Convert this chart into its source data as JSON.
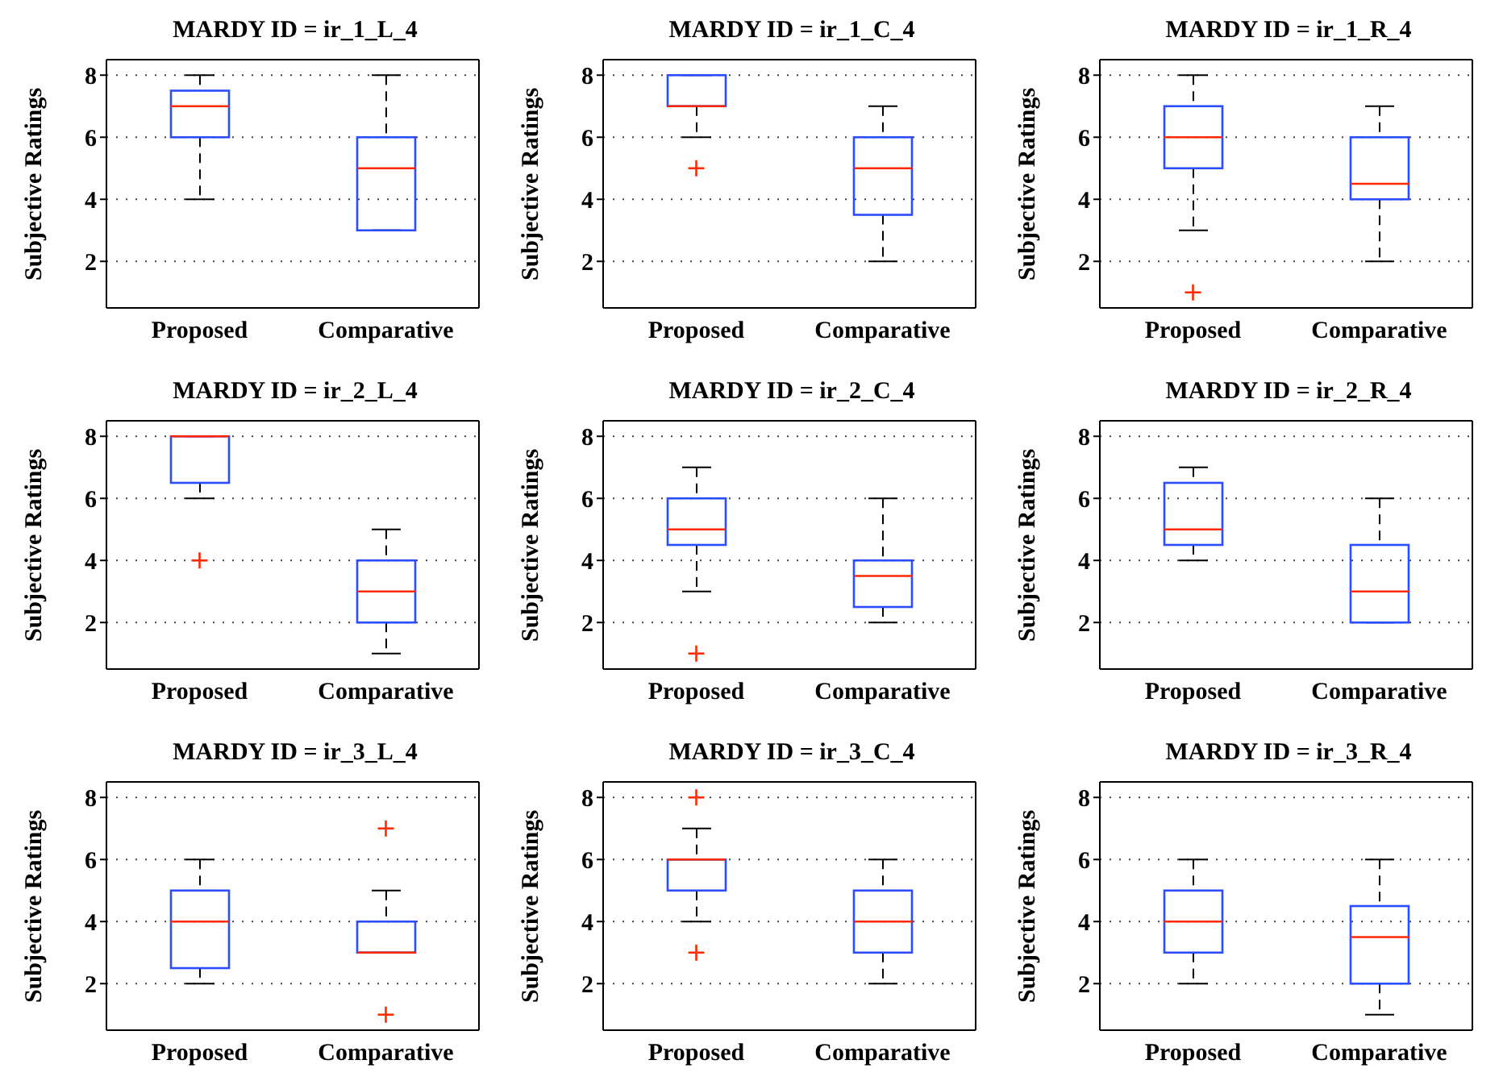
{
  "chart_data": [
    {
      "type": "box",
      "title": "MARDY ID = ir_1_L_4",
      "ylabel": "Subjective Ratings",
      "categories": [
        "Proposed",
        "Comparative"
      ],
      "ylim": [
        0.5,
        8.5
      ],
      "yticks": [
        2,
        4,
        6,
        8
      ],
      "grid": "y",
      "boxes": [
        {
          "low": 4,
          "q1": 6,
          "median": 7,
          "q3": 7.5,
          "high": 8
        },
        {
          "low": 3,
          "q1": 3,
          "median": 5,
          "q3": 6,
          "high": 8
        }
      ]
    },
    {
      "type": "box",
      "title": "MARDY ID = ir_1_C_4",
      "ylabel": "Subjective Ratings",
      "categories": [
        "Proposed",
        "Comparative"
      ],
      "ylim": [
        0.5,
        8.5
      ],
      "yticks": [
        2,
        4,
        6,
        8
      ],
      "grid": "y",
      "boxes": [
        {
          "low": 6,
          "q1": 7,
          "median": 7,
          "q3": 8,
          "high": 8,
          "outliers": [
            5
          ]
        },
        {
          "low": 2,
          "q1": 3.5,
          "median": 5,
          "q3": 6,
          "high": 7
        }
      ]
    },
    {
      "type": "box",
      "title": "MARDY ID = ir_1_R_4",
      "ylabel": "Subjective Ratings",
      "categories": [
        "Proposed",
        "Comparative"
      ],
      "ylim": [
        0.5,
        8.5
      ],
      "yticks": [
        2,
        4,
        6,
        8
      ],
      "grid": "y",
      "boxes": [
        {
          "low": 3,
          "q1": 5,
          "median": 6,
          "q3": 7,
          "high": 8,
          "outliers": [
            1
          ]
        },
        {
          "low": 2,
          "q1": 4,
          "median": 4.5,
          "q3": 6,
          "high": 7
        }
      ]
    },
    {
      "type": "box",
      "title": "MARDY ID = ir_2_L_4",
      "ylabel": "Subjective Ratings",
      "categories": [
        "Proposed",
        "Comparative"
      ],
      "ylim": [
        0.5,
        8.5
      ],
      "yticks": [
        2,
        4,
        6,
        8
      ],
      "grid": "y",
      "boxes": [
        {
          "low": 6,
          "q1": 6.5,
          "median": 8,
          "q3": 8,
          "high": 8,
          "outliers": [
            4
          ]
        },
        {
          "low": 1,
          "q1": 2,
          "median": 3,
          "q3": 4,
          "high": 5
        }
      ]
    },
    {
      "type": "box",
      "title": "MARDY ID = ir_2_C_4",
      "ylabel": "Subjective Ratings",
      "categories": [
        "Proposed",
        "Comparative"
      ],
      "ylim": [
        0.5,
        8.5
      ],
      "yticks": [
        2,
        4,
        6,
        8
      ],
      "grid": "y",
      "boxes": [
        {
          "low": 3,
          "q1": 4.5,
          "median": 5,
          "q3": 6,
          "high": 7,
          "outliers": [
            1
          ]
        },
        {
          "low": 2,
          "q1": 2.5,
          "median": 3.5,
          "q3": 4,
          "high": 6
        }
      ]
    },
    {
      "type": "box",
      "title": "MARDY ID = ir_2_R_4",
      "ylabel": "Subjective Ratings",
      "categories": [
        "Proposed",
        "Comparative"
      ],
      "ylim": [
        0.5,
        8.5
      ],
      "yticks": [
        2,
        4,
        6,
        8
      ],
      "grid": "y",
      "boxes": [
        {
          "low": 4,
          "q1": 4.5,
          "median": 5,
          "q3": 6.5,
          "high": 7
        },
        {
          "low": 2,
          "q1": 2,
          "median": 3,
          "q3": 4.5,
          "high": 6
        }
      ]
    },
    {
      "type": "box",
      "title": "MARDY ID = ir_3_L_4",
      "ylabel": "Subjective Ratings",
      "categories": [
        "Proposed",
        "Comparative"
      ],
      "ylim": [
        0.5,
        8.5
      ],
      "yticks": [
        2,
        4,
        6,
        8
      ],
      "grid": "y",
      "boxes": [
        {
          "low": 2,
          "q1": 2.5,
          "median": 4,
          "q3": 5,
          "high": 6
        },
        {
          "low": 3,
          "q1": 3,
          "median": 3,
          "q3": 4,
          "high": 5,
          "outliers": [
            7,
            1
          ]
        }
      ]
    },
    {
      "type": "box",
      "title": "MARDY ID = ir_3_C_4",
      "ylabel": "Subjective Ratings",
      "categories": [
        "Proposed",
        "Comparative"
      ],
      "ylim": [
        0.5,
        8.5
      ],
      "yticks": [
        2,
        4,
        6,
        8
      ],
      "grid": "y",
      "boxes": [
        {
          "low": 4,
          "q1": 5,
          "median": 6,
          "q3": 6,
          "high": 7,
          "outliers": [
            8,
            3
          ]
        },
        {
          "low": 2,
          "q1": 3,
          "median": 4,
          "q3": 5,
          "high": 6
        }
      ]
    },
    {
      "type": "box",
      "title": "MARDY ID = ir_3_R_4",
      "ylabel": "Subjective Ratings",
      "categories": [
        "Proposed",
        "Comparative"
      ],
      "ylim": [
        0.5,
        8.5
      ],
      "yticks": [
        2,
        4,
        6,
        8
      ],
      "grid": "y",
      "boxes": [
        {
          "low": 2,
          "q1": 3,
          "median": 4,
          "q3": 5,
          "high": 6
        },
        {
          "low": 1,
          "q1": 2,
          "median": 3.5,
          "q3": 4.5,
          "high": 6
        }
      ]
    }
  ]
}
